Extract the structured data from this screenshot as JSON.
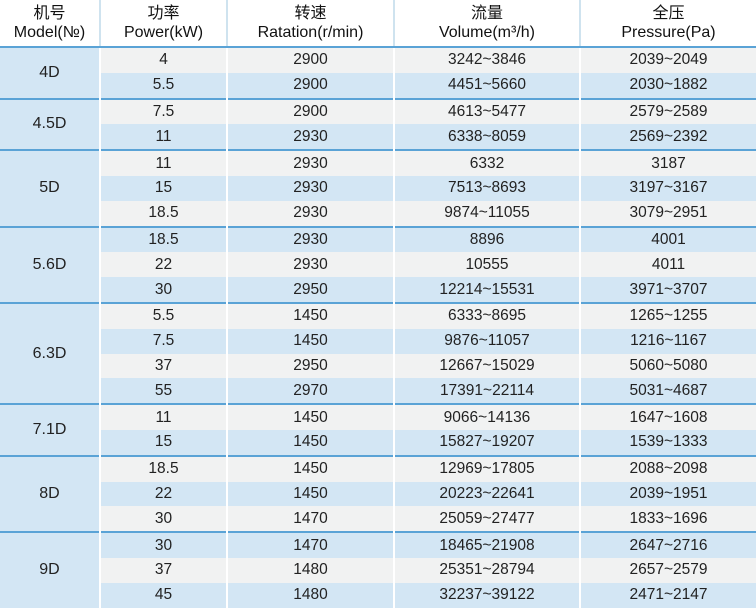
{
  "header": {
    "model": {
      "cn": "机号",
      "en": "Model(№)"
    },
    "power": {
      "cn": "功率",
      "en": "Power(kW)"
    },
    "speed": {
      "cn": "转速",
      "en": "Ratation(r/min)"
    },
    "volume": {
      "cn": "流量",
      "en": "Volume(m³/h)"
    },
    "pressure": {
      "cn": "全压",
      "en": "Pressure(Pa)"
    }
  },
  "groups": [
    {
      "model": "4D",
      "rows": [
        {
          "power": "4",
          "speed": "2900",
          "volume": "3242~3846",
          "pressure": "2039~2049"
        },
        {
          "power": "5.5",
          "speed": "2900",
          "volume": "4451~5660",
          "pressure": "2030~1882"
        }
      ]
    },
    {
      "model": "4.5D",
      "rows": [
        {
          "power": "7.5",
          "speed": "2900",
          "volume": "4613~5477",
          "pressure": "2579~2589"
        },
        {
          "power": "11",
          "speed": "2930",
          "volume": "6338~8059",
          "pressure": "2569~2392"
        }
      ]
    },
    {
      "model": "5D",
      "rows": [
        {
          "power": "11",
          "speed": "2930",
          "volume": "6332",
          "pressure": "3187"
        },
        {
          "power": "15",
          "speed": "2930",
          "volume": "7513~8693",
          "pressure": "3197~3167"
        },
        {
          "power": "18.5",
          "speed": "2930",
          "volume": "9874~11055",
          "pressure": "3079~2951"
        }
      ]
    },
    {
      "model": "5.6D",
      "rows": [
        {
          "power": "18.5",
          "speed": "2930",
          "volume": "8896",
          "pressure": "4001"
        },
        {
          "power": "22",
          "speed": "2930",
          "volume": "10555",
          "pressure": "4011"
        },
        {
          "power": "30",
          "speed": "2950",
          "volume": "12214~15531",
          "pressure": "3971~3707"
        }
      ]
    },
    {
      "model": "6.3D",
      "rows": [
        {
          "power": "5.5",
          "speed": "1450",
          "volume": "6333~8695",
          "pressure": "1265~1255"
        },
        {
          "power": "7.5",
          "speed": "1450",
          "volume": "9876~11057",
          "pressure": "1216~1167"
        },
        {
          "power": "37",
          "speed": "2950",
          "volume": "12667~15029",
          "pressure": "5060~5080"
        },
        {
          "power": "55",
          "speed": "2970",
          "volume": "17391~22114",
          "pressure": "5031~4687"
        }
      ]
    },
    {
      "model": "7.1D",
      "rows": [
        {
          "power": "11",
          "speed": "1450",
          "volume": "9066~14136",
          "pressure": "1647~1608"
        },
        {
          "power": "15",
          "speed": "1450",
          "volume": "15827~19207",
          "pressure": "1539~1333"
        }
      ]
    },
    {
      "model": "8D",
      "rows": [
        {
          "power": "18.5",
          "speed": "1450",
          "volume": "12969~17805",
          "pressure": "2088~2098"
        },
        {
          "power": "22",
          "speed": "1450",
          "volume": "20223~22641",
          "pressure": "2039~1951"
        },
        {
          "power": "30",
          "speed": "1470",
          "volume": "25059~27477",
          "pressure": "1833~1696"
        }
      ]
    },
    {
      "model": "9D",
      "rows": [
        {
          "power": "30",
          "speed": "1470",
          "volume": "18465~21908",
          "pressure": "2647~2716"
        },
        {
          "power": "37",
          "speed": "1480",
          "volume": "25351~28794",
          "pressure": "2657~2579"
        },
        {
          "power": "45",
          "speed": "1480",
          "volume": "32237~39122",
          "pressure": "2471~2147"
        }
      ]
    }
  ]
}
